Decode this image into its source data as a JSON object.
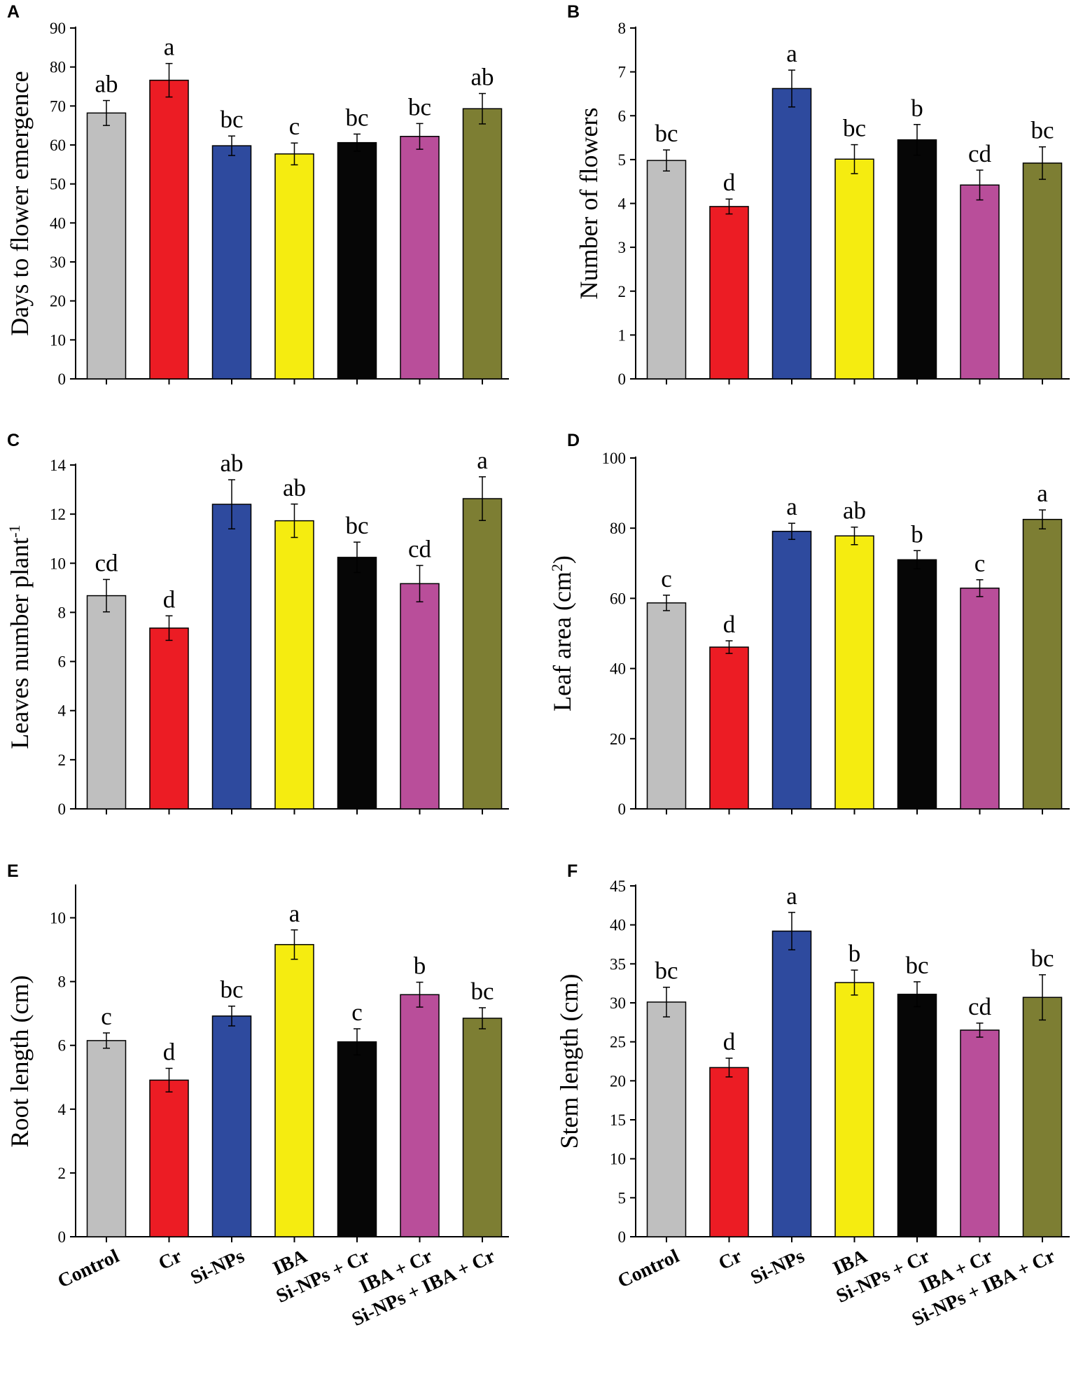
{
  "colors": [
    "#bfbfbf",
    "#ec1c24",
    "#2e4a9e",
    "#f5ec10",
    "#060606",
    "#b94e9a",
    "#7d7e33"
  ],
  "categories": [
    "Control",
    "Cr",
    "Si-NPs",
    "IBA",
    "Si-NPs + Cr",
    "IBA + Cr",
    "Si-NPs + IBA + Cr"
  ],
  "chart_data": [
    {
      "panel": "A",
      "type": "bar",
      "ylabel": "Days to flower emergence",
      "ylim": [
        0,
        90
      ],
      "yticks": [
        0,
        10,
        20,
        30,
        40,
        50,
        60,
        70,
        80,
        90
      ],
      "categories": [
        "Control",
        "Cr",
        "Si-NPs",
        "IBA",
        "Si-NPs + Cr",
        "IBA + Cr",
        "Si-NPs + IBA + Cr"
      ],
      "values": [
        68.2,
        76.6,
        59.8,
        57.7,
        60.6,
        62.2,
        69.3
      ],
      "errors": [
        3.2,
        4.3,
        2.5,
        2.8,
        2.2,
        3.3,
        3.9
      ],
      "letters": [
        "ab",
        "a",
        "bc",
        "c",
        "bc",
        "bc",
        "ab"
      ]
    },
    {
      "panel": "B",
      "type": "bar",
      "ylabel": "Number of flowers",
      "ylim": [
        0,
        8
      ],
      "yticks": [
        0,
        1,
        2,
        3,
        4,
        5,
        6,
        7,
        8
      ],
      "categories": [
        "Control",
        "Cr",
        "Si-NPs",
        "IBA",
        "Si-NPs + Cr",
        "IBA + Cr",
        "Si-NPs + IBA + Cr"
      ],
      "values": [
        4.98,
        3.93,
        6.62,
        5.01,
        5.45,
        4.42,
        4.92
      ],
      "errors": [
        0.24,
        0.17,
        0.42,
        0.33,
        0.35,
        0.34,
        0.37
      ],
      "letters": [
        "bc",
        "d",
        "a",
        "bc",
        "b",
        "cd",
        "bc"
      ]
    },
    {
      "panel": "C",
      "type": "bar",
      "ylabel": "Leaves number plant",
      "ylabel_sup": "-1",
      "ylim": [
        0,
        14
      ],
      "yticks": [
        0,
        2,
        4,
        6,
        8,
        10,
        12,
        14
      ],
      "categories": [
        "Control",
        "Cr",
        "Si-NPs",
        "IBA",
        "Si-NPs + Cr",
        "IBA + Cr",
        "Si-NPs + IBA + Cr"
      ],
      "values": [
        8.68,
        7.36,
        12.4,
        11.73,
        10.24,
        9.17,
        12.63
      ],
      "errors": [
        0.66,
        0.5,
        1.0,
        0.68,
        0.62,
        0.74,
        0.89
      ],
      "letters": [
        "cd",
        "d",
        "ab",
        "ab",
        "bc",
        "cd",
        "a"
      ]
    },
    {
      "panel": "D",
      "type": "bar",
      "ylabel": "Leaf area (cm",
      "ylabel_sup": "2",
      "ylabel_end": ")",
      "ylim": [
        0,
        100
      ],
      "yticks": [
        0,
        20,
        40,
        60,
        80,
        100
      ],
      "categories": [
        "Control",
        "Cr",
        "Si-NPs",
        "IBA",
        "Si-NPs + Cr",
        "IBA + Cr",
        "Si-NPs + IBA + Cr"
      ],
      "values": [
        58.7,
        46.1,
        79.1,
        77.8,
        71.0,
        62.9,
        82.5
      ],
      "errors": [
        2.2,
        1.8,
        2.3,
        2.5,
        2.6,
        2.4,
        2.7
      ],
      "letters": [
        "c",
        "d",
        "a",
        "ab",
        "b",
        "c",
        "a"
      ]
    },
    {
      "panel": "E",
      "type": "bar",
      "ylabel": "Root length (cm)",
      "ylim": [
        0,
        11
      ],
      "yticks": [
        0,
        2,
        4,
        6,
        8,
        10
      ],
      "categories": [
        "Control",
        "Cr",
        "Si-NPs",
        "IBA",
        "Si-NPs + Cr",
        "IBA + Cr",
        "Si-NPs + IBA + Cr"
      ],
      "values": [
        6.15,
        4.91,
        6.92,
        9.16,
        6.11,
        7.59,
        6.85
      ],
      "errors": [
        0.24,
        0.37,
        0.31,
        0.46,
        0.41,
        0.39,
        0.33
      ],
      "letters": [
        "c",
        "d",
        "bc",
        "a",
        "c",
        "b",
        "bc"
      ]
    },
    {
      "panel": "F",
      "type": "bar",
      "ylabel": "Stem length (cm)",
      "ylim": [
        0,
        45
      ],
      "yticks": [
        0,
        5,
        10,
        15,
        20,
        25,
        30,
        35,
        40,
        45
      ],
      "categories": [
        "Control",
        "Cr",
        "Si-NPs",
        "IBA",
        "Si-NPs + Cr",
        "IBA + Cr",
        "Si-NPs + IBA + Cr"
      ],
      "values": [
        30.1,
        21.7,
        39.2,
        32.6,
        31.1,
        26.5,
        30.7
      ],
      "errors": [
        1.9,
        1.2,
        2.4,
        1.6,
        1.6,
        0.9,
        2.9
      ],
      "letters": [
        "bc",
        "d",
        "a",
        "b",
        "bc",
        "cd",
        "bc"
      ]
    }
  ]
}
